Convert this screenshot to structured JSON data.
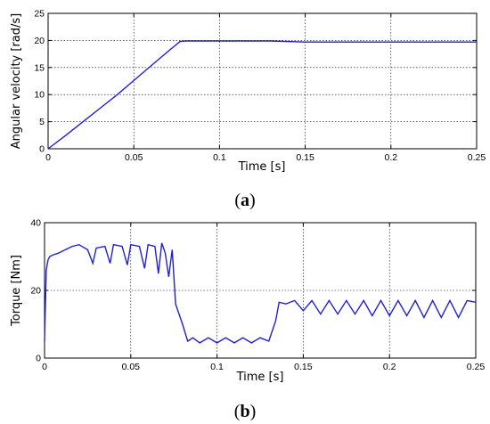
{
  "chart_data": [
    {
      "type": "line",
      "subfigure": "a",
      "xlabel": "Time [s]",
      "ylabel": "Angular velocity [rad/s]",
      "xlim": [
        0,
        0.25
      ],
      "ylim": [
        0,
        25
      ],
      "xticks": [
        0,
        0.05,
        0.1,
        0.15,
        0.2,
        0.25
      ],
      "xtick_labels": [
        "0",
        "0.05",
        "0.1",
        "0.15",
        "0.2",
        "0.25"
      ],
      "yticks": [
        0,
        5,
        10,
        15,
        20,
        25
      ],
      "ytick_labels": [
        "0",
        "5",
        "10",
        "15",
        "20",
        "25"
      ],
      "grid": true,
      "line_color": "#1f1fd8",
      "series": [
        {
          "x": [
            0,
            0.01,
            0.02,
            0.03,
            0.04,
            0.05,
            0.06,
            0.07,
            0.077,
            0.08,
            0.1,
            0.13,
            0.15,
            0.2,
            0.25
          ],
          "values": [
            0,
            2.4,
            4.9,
            7.4,
            9.9,
            12.6,
            15.3,
            18.0,
            19.8,
            19.9,
            19.9,
            19.9,
            19.7,
            19.7,
            19.7
          ]
        }
      ]
    },
    {
      "type": "line",
      "subfigure": "b",
      "xlabel": "Time [s]",
      "ylabel": "Torque [Nm]",
      "xlim": [
        0,
        0.25
      ],
      "ylim": [
        0,
        40
      ],
      "xticks": [
        0,
        0.05,
        0.1,
        0.15,
        0.2,
        0.25
      ],
      "xtick_labels": [
        "0",
        "0.05",
        "0.1",
        "0.15",
        "0.2",
        "0.25"
      ],
      "yticks": [
        0,
        20,
        40
      ],
      "ytick_labels": [
        "0",
        "20",
        "40"
      ],
      "grid": true,
      "line_color": "#1f1fd8",
      "series": [
        {
          "x": [
            0,
            0.001,
            0.002,
            0.003,
            0.005,
            0.008,
            0.012,
            0.016,
            0.02,
            0.025,
            0.028,
            0.03,
            0.035,
            0.038,
            0.04,
            0.045,
            0.048,
            0.05,
            0.055,
            0.058,
            0.06,
            0.064,
            0.066,
            0.068,
            0.07,
            0.072,
            0.074,
            0.076,
            0.08,
            0.083,
            0.086,
            0.09,
            0.095,
            0.1,
            0.105,
            0.11,
            0.115,
            0.12,
            0.125,
            0.13,
            0.134,
            0.136,
            0.14,
            0.145,
            0.15,
            0.155,
            0.16,
            0.165,
            0.17,
            0.175,
            0.18,
            0.185,
            0.19,
            0.195,
            0.2,
            0.205,
            0.21,
            0.215,
            0.22,
            0.225,
            0.23,
            0.235,
            0.24,
            0.245,
            0.25
          ],
          "values": [
            5,
            26,
            29,
            30,
            30.5,
            31,
            32,
            33,
            33.5,
            32,
            28,
            32.5,
            33,
            28,
            33.5,
            33,
            27.5,
            33.5,
            33,
            26.5,
            33.5,
            33,
            25,
            34,
            31,
            24,
            32,
            16,
            10,
            5,
            6,
            4.5,
            6,
            4.5,
            6,
            4.5,
            6,
            4.5,
            6,
            5,
            11,
            16.5,
            16,
            17,
            14,
            17,
            13,
            17,
            13,
            17,
            13,
            17,
            12.5,
            17,
            12.5,
            17,
            12.5,
            17,
            12,
            17,
            12,
            17,
            12,
            17,
            16.5
          ]
        }
      ]
    }
  ],
  "panels": {
    "a": {
      "caption_letter": "a",
      "caption_open": "(",
      "caption_close": ")"
    },
    "b": {
      "caption_letter": "b",
      "caption_open": "(",
      "caption_close": ")"
    }
  }
}
